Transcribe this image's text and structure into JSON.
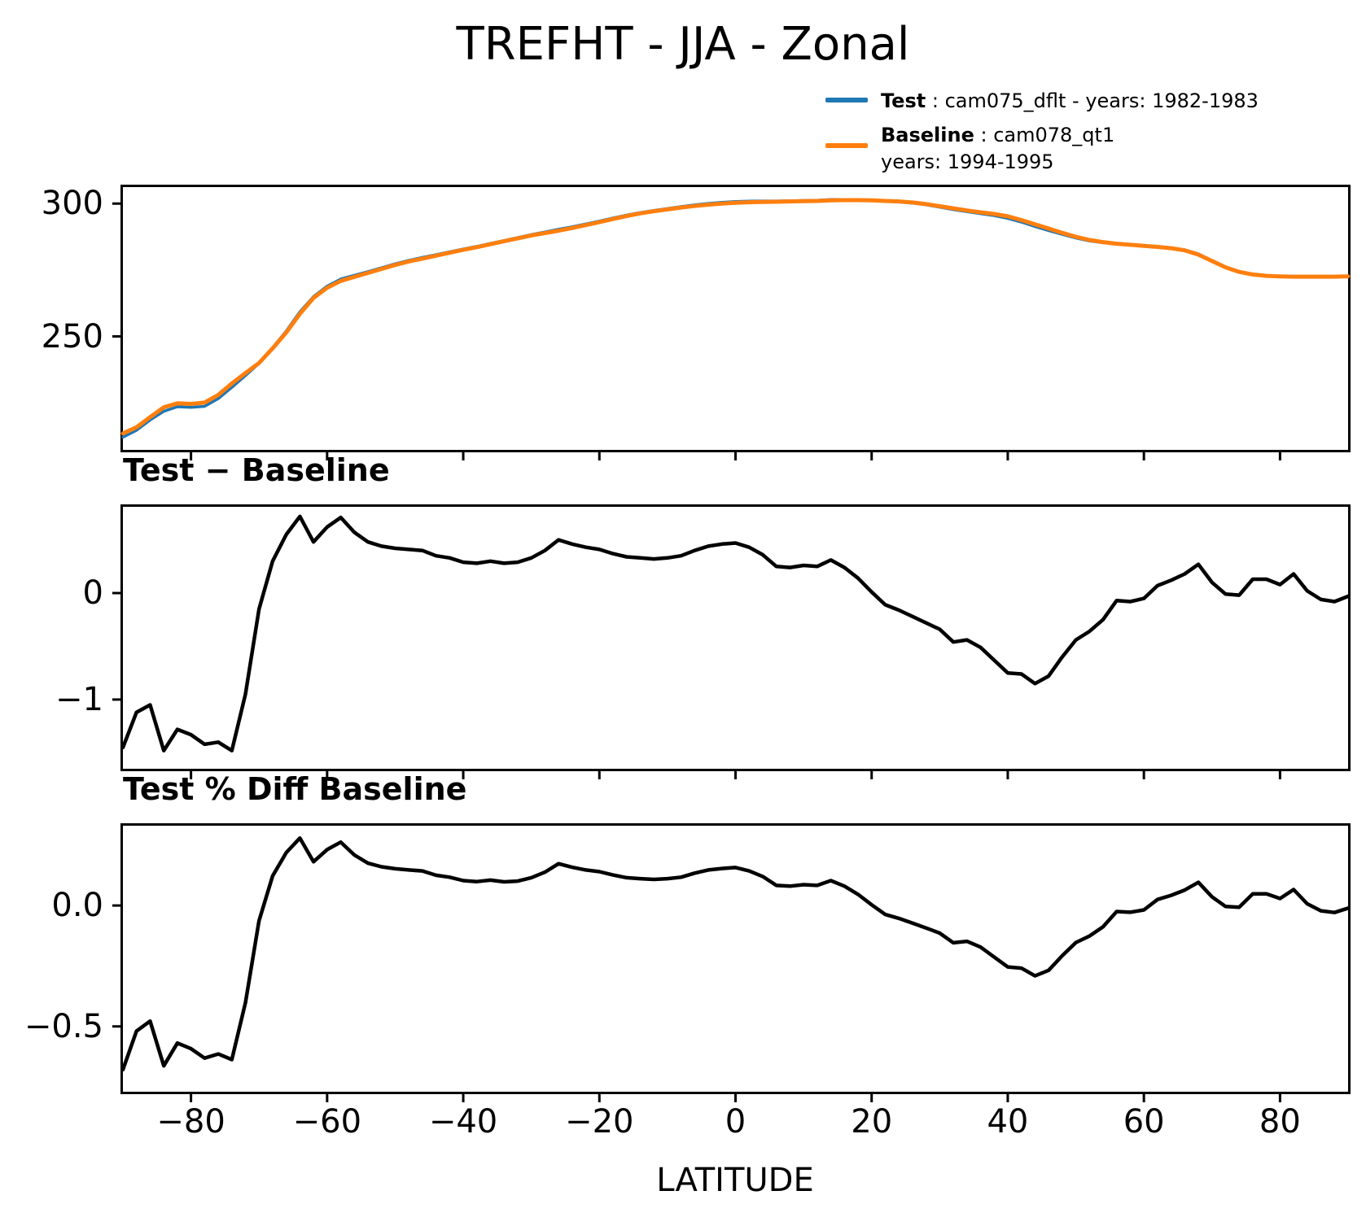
{
  "title": "TREFHT - JJA - Zonal",
  "xlabel": "LATITUDE",
  "legend": {
    "test": {
      "label": "Test",
      "sep": " : ",
      "desc": "cam075_dflt - years: 1982-1983",
      "color": "#1f77b4"
    },
    "baseline": {
      "label": "Baseline",
      "sep": " : ",
      "desc": "cam078_qt1",
      "desc2": "years: 1994-1995",
      "color": "#ff7f0e"
    }
  },
  "panel_labels": {
    "diff": "Test − Baseline",
    "pct": "Test % Diff Baseline"
  },
  "colors": {
    "test_line": "#1f77b4",
    "baseline_line": "#ff7f0e",
    "diff_line": "#000000",
    "axes": "#000000"
  },
  "chart_data": [
    {
      "type": "line",
      "title": "TREFHT - JJA - Zonal",
      "xlabel": "LATITUDE",
      "grid": false,
      "legend_position": "outside upper right, no frame",
      "xlim": [
        -90,
        90
      ],
      "ylim": [
        207.3,
        306.2
      ],
      "xticks": [
        -80,
        -60,
        -40,
        -20,
        0,
        20,
        40,
        60,
        80
      ],
      "xtick_labels": null,
      "yticks": [
        300,
        250
      ],
      "ytick_labels": [
        "300",
        "250"
      ],
      "x": [
        -90,
        -88,
        -86,
        -84,
        -82,
        -80,
        -78,
        -76,
        -74,
        -72,
        -70,
        -68,
        -66,
        -64,
        -62,
        -60,
        -58,
        -56,
        -54,
        -52,
        -50,
        -48,
        -46,
        -44,
        -42,
        -40,
        -38,
        -36,
        -34,
        -32,
        -30,
        -28,
        -26,
        -24,
        -22,
        -20,
        -18,
        -16,
        -14,
        -12,
        -10,
        -8,
        -6,
        -4,
        -2,
        0,
        2,
        4,
        6,
        8,
        10,
        12,
        14,
        16,
        18,
        20,
        22,
        24,
        26,
        28,
        30,
        32,
        34,
        36,
        38,
        40,
        42,
        44,
        46,
        48,
        50,
        52,
        54,
        56,
        58,
        60,
        62,
        64,
        66,
        68,
        70,
        72,
        74,
        76,
        78,
        80,
        82,
        84,
        86,
        88,
        90
      ],
      "series": [
        {
          "name": "Test : cam075_dflt - years: 1982-1983",
          "color": "#1f77b4",
          "values": [
            212.05,
            214.68,
            218.55,
            221.82,
            223.52,
            223.27,
            223.68,
            226.6,
            230.82,
            235.25,
            239.85,
            245.8,
            252.05,
            259.22,
            264.98,
            268.92,
            271.61,
            272.97,
            274.38,
            275.84,
            277.32,
            278.61,
            279.7,
            280.75,
            281.83,
            282.89,
            283.88,
            285.0,
            286.08,
            287.19,
            288.33,
            289.3,
            290.3,
            291.26,
            292.33,
            293.41,
            294.57,
            295.64,
            296.63,
            297.42,
            298.13,
            298.85,
            299.5,
            300.04,
            300.46,
            300.77,
            300.93,
            300.96,
            300.95,
            301.04,
            301.16,
            301.25,
            301.51,
            301.54,
            301.44,
            301.21,
            300.89,
            300.64,
            300.18,
            299.52,
            298.66,
            297.74,
            296.96,
            296.19,
            295.47,
            294.45,
            293.04,
            291.35,
            289.82,
            288.4,
            287.06,
            285.94,
            285.25,
            284.83,
            284.42,
            284.05,
            283.77,
            283.32,
            282.58,
            281.07,
            278.5,
            275.99,
            274.28,
            273.43,
            272.93,
            272.68,
            272.68,
            272.52,
            272.44,
            272.42,
            272.57
          ]
        },
        {
          "name": "Baseline : cam078_qt1 years: 1994-1995",
          "color": "#ff7f0e",
          "values": [
            213.5,
            215.8,
            219.6,
            223.3,
            224.8,
            224.6,
            225.1,
            228.0,
            232.3,
            236.2,
            240.0,
            245.5,
            251.5,
            258.5,
            264.5,
            268.3,
            270.9,
            272.4,
            273.9,
            275.4,
            276.9,
            278.2,
            279.3,
            280.4,
            281.5,
            282.6,
            283.6,
            284.7,
            285.8,
            286.9,
            288.0,
            288.9,
            289.8,
            290.8,
            291.9,
            293.0,
            294.2,
            295.3,
            296.3,
            297.1,
            297.8,
            298.5,
            299.1,
            299.6,
            300.0,
            300.3,
            300.5,
            300.6,
            300.7,
            300.8,
            300.9,
            301.0,
            301.2,
            301.3,
            301.3,
            301.2,
            301.0,
            300.8,
            300.4,
            299.8,
            299.0,
            298.2,
            297.4,
            296.7,
            296.1,
            295.2,
            293.8,
            292.2,
            290.6,
            289.0,
            287.5,
            286.3,
            285.5,
            284.9,
            284.5,
            284.1,
            283.7,
            283.2,
            282.4,
            280.8,
            278.4,
            276.0,
            274.3,
            273.3,
            272.8,
            272.6,
            272.5,
            272.5,
            272.5,
            272.5,
            272.6
          ]
        }
      ]
    },
    {
      "type": "line",
      "title": "Test − Baseline",
      "grid": false,
      "xlim": [
        -90,
        90
      ],
      "ylim": [
        -1.65,
        0.81
      ],
      "xticks": [
        -80,
        -60,
        -40,
        -20,
        0,
        20,
        40,
        60,
        80
      ],
      "xtick_labels": null,
      "yticks": [
        0,
        -1
      ],
      "ytick_labels": [
        "0",
        "−1"
      ],
      "x_same_as": "chart_data[0].x",
      "series": [
        {
          "name": "Test minus Baseline (K)",
          "color": "#000000",
          "derived_from": "Test - Baseline",
          "values": [
            -1.45,
            -1.12,
            -1.05,
            -1.48,
            -1.28,
            -1.33,
            -1.42,
            -1.4,
            -1.48,
            -0.95,
            -0.15,
            0.3,
            0.55,
            0.72,
            0.48,
            0.62,
            0.71,
            0.57,
            0.48,
            0.44,
            0.42,
            0.41,
            0.4,
            0.35,
            0.33,
            0.29,
            0.28,
            0.3,
            0.28,
            0.29,
            0.33,
            0.4,
            0.5,
            0.46,
            0.43,
            0.41,
            0.37,
            0.34,
            0.33,
            0.32,
            0.33,
            0.35,
            0.4,
            0.44,
            0.46,
            0.47,
            0.43,
            0.36,
            0.25,
            0.24,
            0.26,
            0.25,
            0.31,
            0.24,
            0.14,
            0.01,
            -0.11,
            -0.16,
            -0.22,
            -0.28,
            -0.34,
            -0.46,
            -0.44,
            -0.51,
            -0.63,
            -0.75,
            -0.76,
            -0.85,
            -0.78,
            -0.6,
            -0.44,
            -0.36,
            -0.25,
            -0.07,
            -0.08,
            -0.05,
            0.07,
            0.12,
            0.18,
            0.27,
            0.1,
            -0.01,
            -0.02,
            0.13,
            0.13,
            0.08,
            0.18,
            0.02,
            -0.06,
            -0.08,
            -0.03
          ]
        }
      ]
    },
    {
      "type": "line",
      "title": "Test % Diff Baseline",
      "grid": false,
      "xlim": [
        -90,
        90
      ],
      "ylim": [
        -0.77,
        0.33
      ],
      "xticks": [
        -80,
        -60,
        -40,
        -20,
        0,
        20,
        40,
        60,
        80
      ],
      "xtick_labels": [
        "−80",
        "−60",
        "−40",
        "−20",
        "0",
        "20",
        "40",
        "60",
        "80"
      ],
      "yticks": [
        0.0,
        -0.5
      ],
      "ytick_labels": [
        "0.0",
        "−0.5"
      ],
      "x_same_as": "chart_data[0].x",
      "series": [
        {
          "name": "Test percent difference from Baseline (%)",
          "color": "#000000",
          "derived_from": "100*(Test - Baseline)/Baseline",
          "values": [
            -0.679,
            -0.519,
            -0.478,
            -0.663,
            -0.569,
            -0.592,
            -0.631,
            -0.614,
            -0.637,
            -0.402,
            -0.063,
            0.122,
            0.219,
            0.279,
            0.181,
            0.231,
            0.262,
            0.209,
            0.175,
            0.16,
            0.152,
            0.147,
            0.143,
            0.125,
            0.117,
            0.103,
            0.099,
            0.105,
            0.098,
            0.101,
            0.115,
            0.138,
            0.173,
            0.158,
            0.147,
            0.14,
            0.126,
            0.115,
            0.111,
            0.108,
            0.111,
            0.117,
            0.134,
            0.147,
            0.153,
            0.157,
            0.143,
            0.12,
            0.083,
            0.08,
            0.086,
            0.083,
            0.103,
            0.08,
            0.046,
            0.003,
            -0.037,
            -0.053,
            -0.073,
            -0.093,
            -0.114,
            -0.154,
            -0.148,
            -0.172,
            -0.213,
            -0.254,
            -0.259,
            -0.291,
            -0.268,
            -0.208,
            -0.153,
            -0.126,
            -0.088,
            -0.025,
            -0.028,
            -0.018,
            0.025,
            0.042,
            0.064,
            0.096,
            0.036,
            -0.004,
            -0.007,
            0.048,
            0.048,
            0.029,
            0.066,
            0.007,
            -0.022,
            -0.029,
            -0.011
          ]
        }
      ]
    }
  ]
}
